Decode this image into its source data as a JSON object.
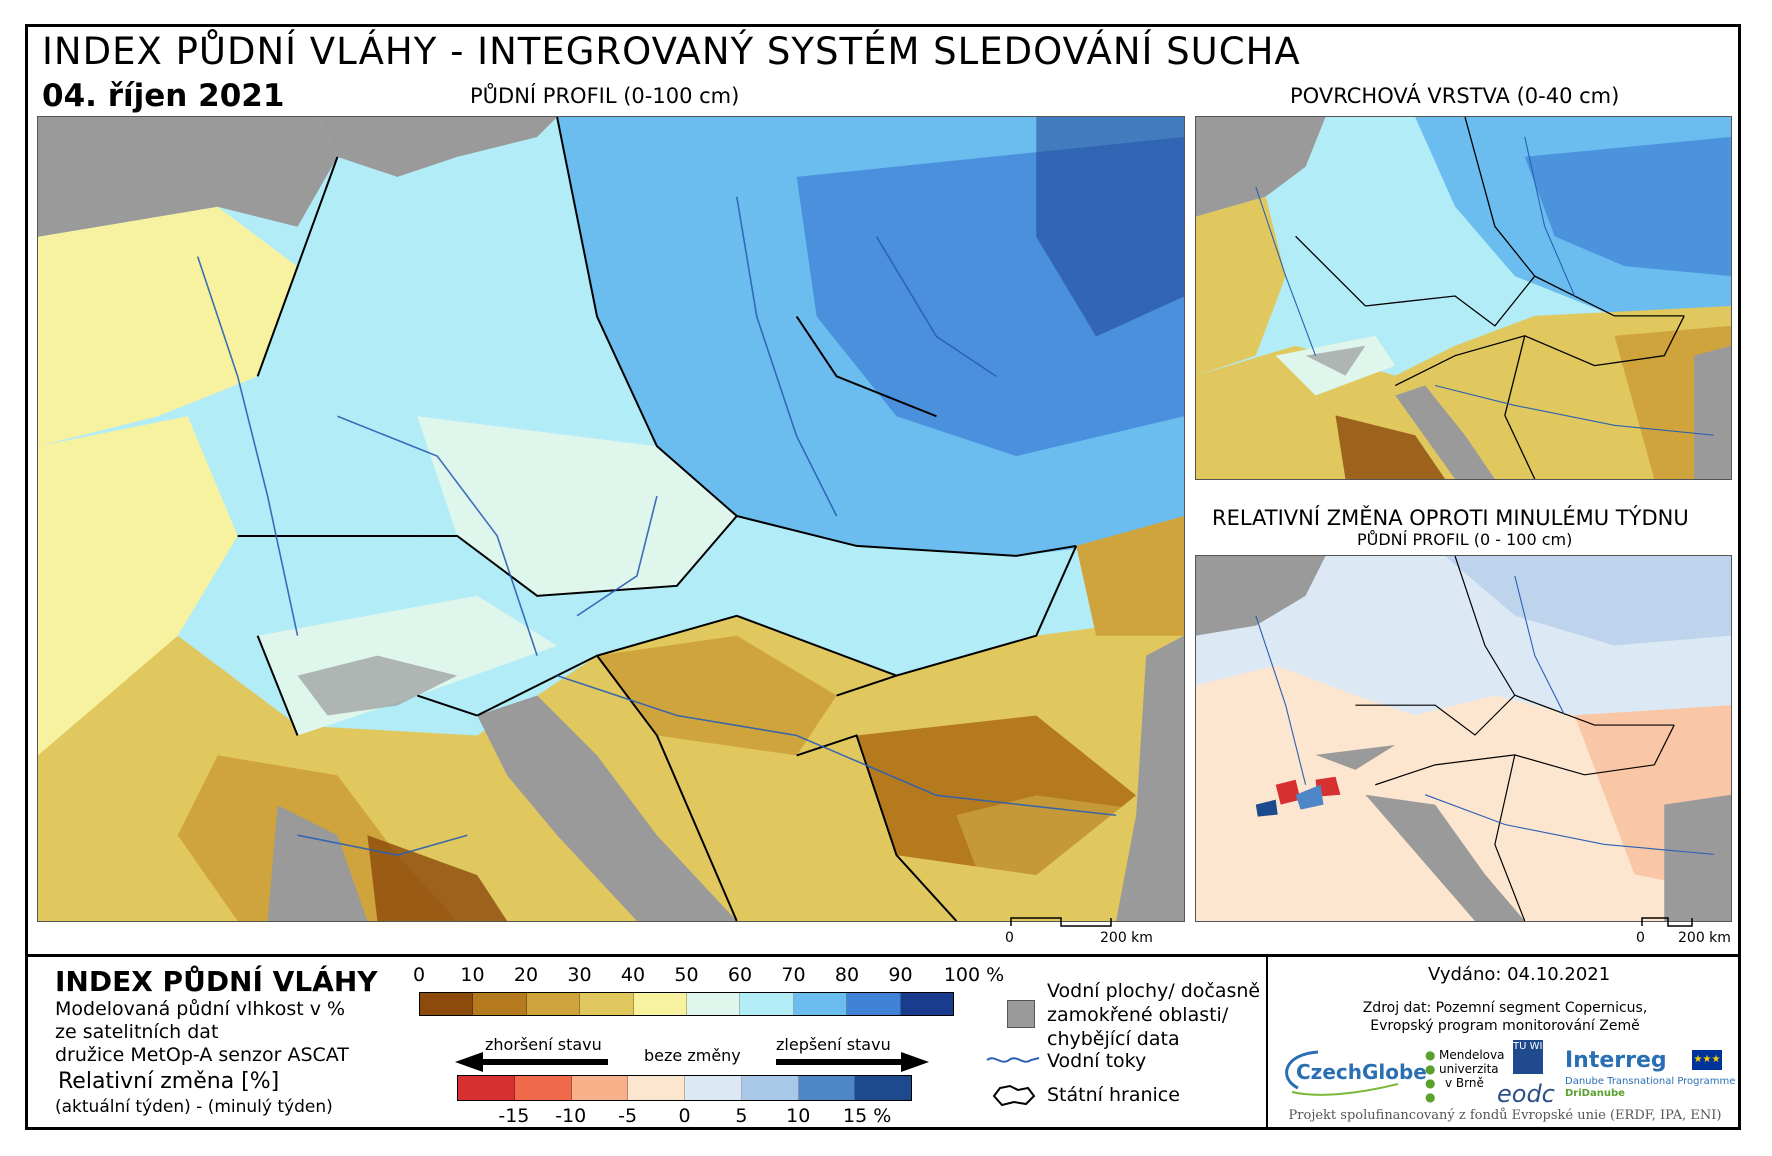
{
  "header": {
    "title": "INDEX PŮDNÍ VLÁHY - INTEGROVANÝ SYSTÉM SLEDOVÁNÍ SUCHA",
    "date": "04. říjen 2021"
  },
  "maps": {
    "main_title": "PŮDNÍ PROFIL (0-100 cm)",
    "surface_title": "POVRCHOVÁ VRSTVA (0-40 cm)",
    "change_title": "RELATIVNÍ ZMĚNA OPROTI MINULÉMU TÝDNU",
    "change_subtitle": "PŮDNÍ PROFIL (0 - 100 cm)",
    "scale_zero": "0",
    "scale_label": "200 km"
  },
  "legend": {
    "title": "INDEX PŮDNÍ VLÁHY",
    "desc1": "Modelovaná půdní vlhkost v %",
    "desc2": "ze satelitních dat",
    "desc3": "družice MetOp-A senzor ASCAT",
    "rel_title": "Relativní změna [%]",
    "rel_desc": "(aktuální týden) - (minulý týden)",
    "moisture_ticks": [
      "0",
      "10",
      "20",
      "30",
      "40",
      "50",
      "60",
      "70",
      "80",
      "90",
      "100 %"
    ],
    "moisture_colors": [
      "#8c4a0b",
      "#b57a1e",
      "#cfa43c",
      "#e0c85e",
      "#f7f2a0",
      "#dff6ec",
      "#b2ecf7",
      "#6bbdf0",
      "#3f82d6",
      "#1a3c8e"
    ],
    "change_labels": {
      "worse": "zhoršení stavu",
      "none": "beze změny",
      "better": "zlepšení stavu"
    },
    "change_ticks": [
      "-15",
      "-10",
      "-5",
      "0",
      "5",
      "10",
      "15 %"
    ],
    "change_colors": [
      "#d63030",
      "#ef6a4a",
      "#f7b08a",
      "#fde6cf",
      "#dce8f4",
      "#a9c7e6",
      "#4e86c8",
      "#1d4a8c"
    ],
    "symbols": {
      "water_areas": "Vodní plochy/ dočasně zamokřené oblasti/ chybějící data",
      "water_areas_l1": "Vodní plochy/ dočasně",
      "water_areas_l2": "zamokřené oblasti/",
      "water_areas_l3": "chybějící data",
      "rivers": "Vodní toky",
      "borders": "Státní hranice"
    }
  },
  "info": {
    "issued": "Vydáno: 04.10.2021",
    "source_l1": "Zdroj dat: Pozemní segment Copernicus,",
    "source_l2": "Evropský program monitorování Země",
    "footer": "Projekt spolufinancovaný z fondů Evropské unie (ERDF, IPA, ENI)",
    "logos": {
      "czechglobe": "CzechGlobe",
      "mendel_1": "Mendelova",
      "mendel_2": "univerzita",
      "mendel_3": "v Brně",
      "tuwien": "TU WIEN",
      "eodc": "eodc",
      "interreg": "Interreg",
      "interreg_sub1": "Danube Transnational Programme",
      "interreg_sub2": "DriDanube"
    }
  },
  "colors": {
    "sea": "#9a9a9a",
    "border_lines": "#000000",
    "rivers": "#2a5fb4"
  }
}
